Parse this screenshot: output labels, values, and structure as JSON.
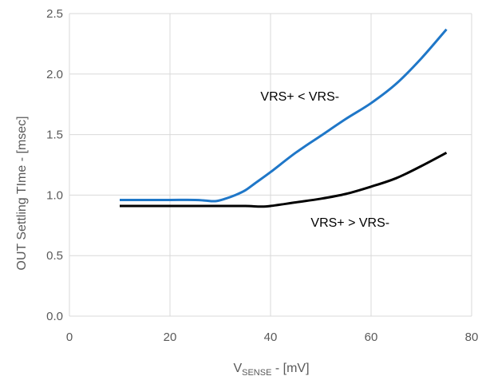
{
  "chart_data": {
    "type": "line",
    "ylabel": "OUT Settling TIme - [msec]",
    "xlabel": {
      "prefix": "V",
      "subscript": "SENSE",
      "suffix": " - [mV]"
    },
    "xlim": [
      0,
      80
    ],
    "ylim": [
      0,
      2.5
    ],
    "x_ticks": [
      "0",
      "20",
      "40",
      "60",
      "80"
    ],
    "y_ticks": [
      "0.0",
      "0.5",
      "1.0",
      "1.5",
      "2.0",
      "2.5"
    ],
    "grid": true,
    "colors": {
      "grid": "#d9d9d9",
      "tick_text": "#595959",
      "blue": "#1f77c8",
      "black": "#000000"
    },
    "series": [
      {
        "color": "#1f77c8",
        "points": [
          [
            10,
            0.96
          ],
          [
            15,
            0.96
          ],
          [
            20,
            0.96
          ],
          [
            25,
            0.96
          ],
          [
            27,
            0.955
          ],
          [
            29,
            0.95
          ],
          [
            31,
            0.97
          ],
          [
            33,
            1.0
          ],
          [
            35,
            1.04
          ],
          [
            37,
            1.1
          ],
          [
            40,
            1.19
          ],
          [
            45,
            1.35
          ],
          [
            50,
            1.49
          ],
          [
            55,
            1.63
          ],
          [
            60,
            1.76
          ],
          [
            65,
            1.92
          ],
          [
            70,
            2.13
          ],
          [
            75,
            2.37
          ]
        ]
      },
      {
        "color": "#000000",
        "points": [
          [
            10,
            0.91
          ],
          [
            20,
            0.91
          ],
          [
            30,
            0.91
          ],
          [
            35,
            0.91
          ],
          [
            38,
            0.905
          ],
          [
            40,
            0.91
          ],
          [
            45,
            0.94
          ],
          [
            50,
            0.97
          ],
          [
            55,
            1.01
          ],
          [
            60,
            1.07
          ],
          [
            65,
            1.14
          ],
          [
            70,
            1.24
          ],
          [
            75,
            1.35
          ]
        ]
      }
    ],
    "annotations": [
      {
        "text": "VRS+ < VRS-",
        "x": 38,
        "y": 1.78
      },
      {
        "text": "VRS+ > VRS-",
        "x": 48,
        "y": 0.74
      }
    ]
  }
}
